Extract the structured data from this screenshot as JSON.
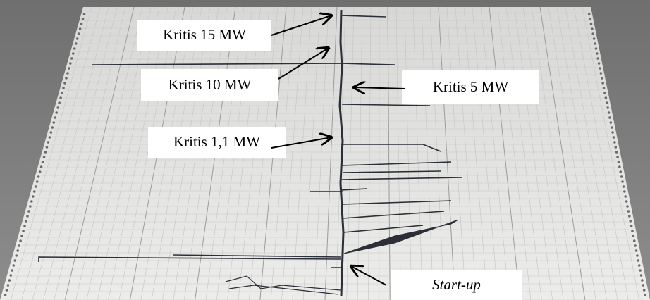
{
  "annotations": [
    {
      "label": "Kritis 15 MW"
    },
    {
      "label": "Kritis 10 MW"
    },
    {
      "label": "Kritis 5 MW"
    },
    {
      "label": "Kritis 1,1 MW"
    },
    {
      "label": "Start-up"
    }
  ]
}
